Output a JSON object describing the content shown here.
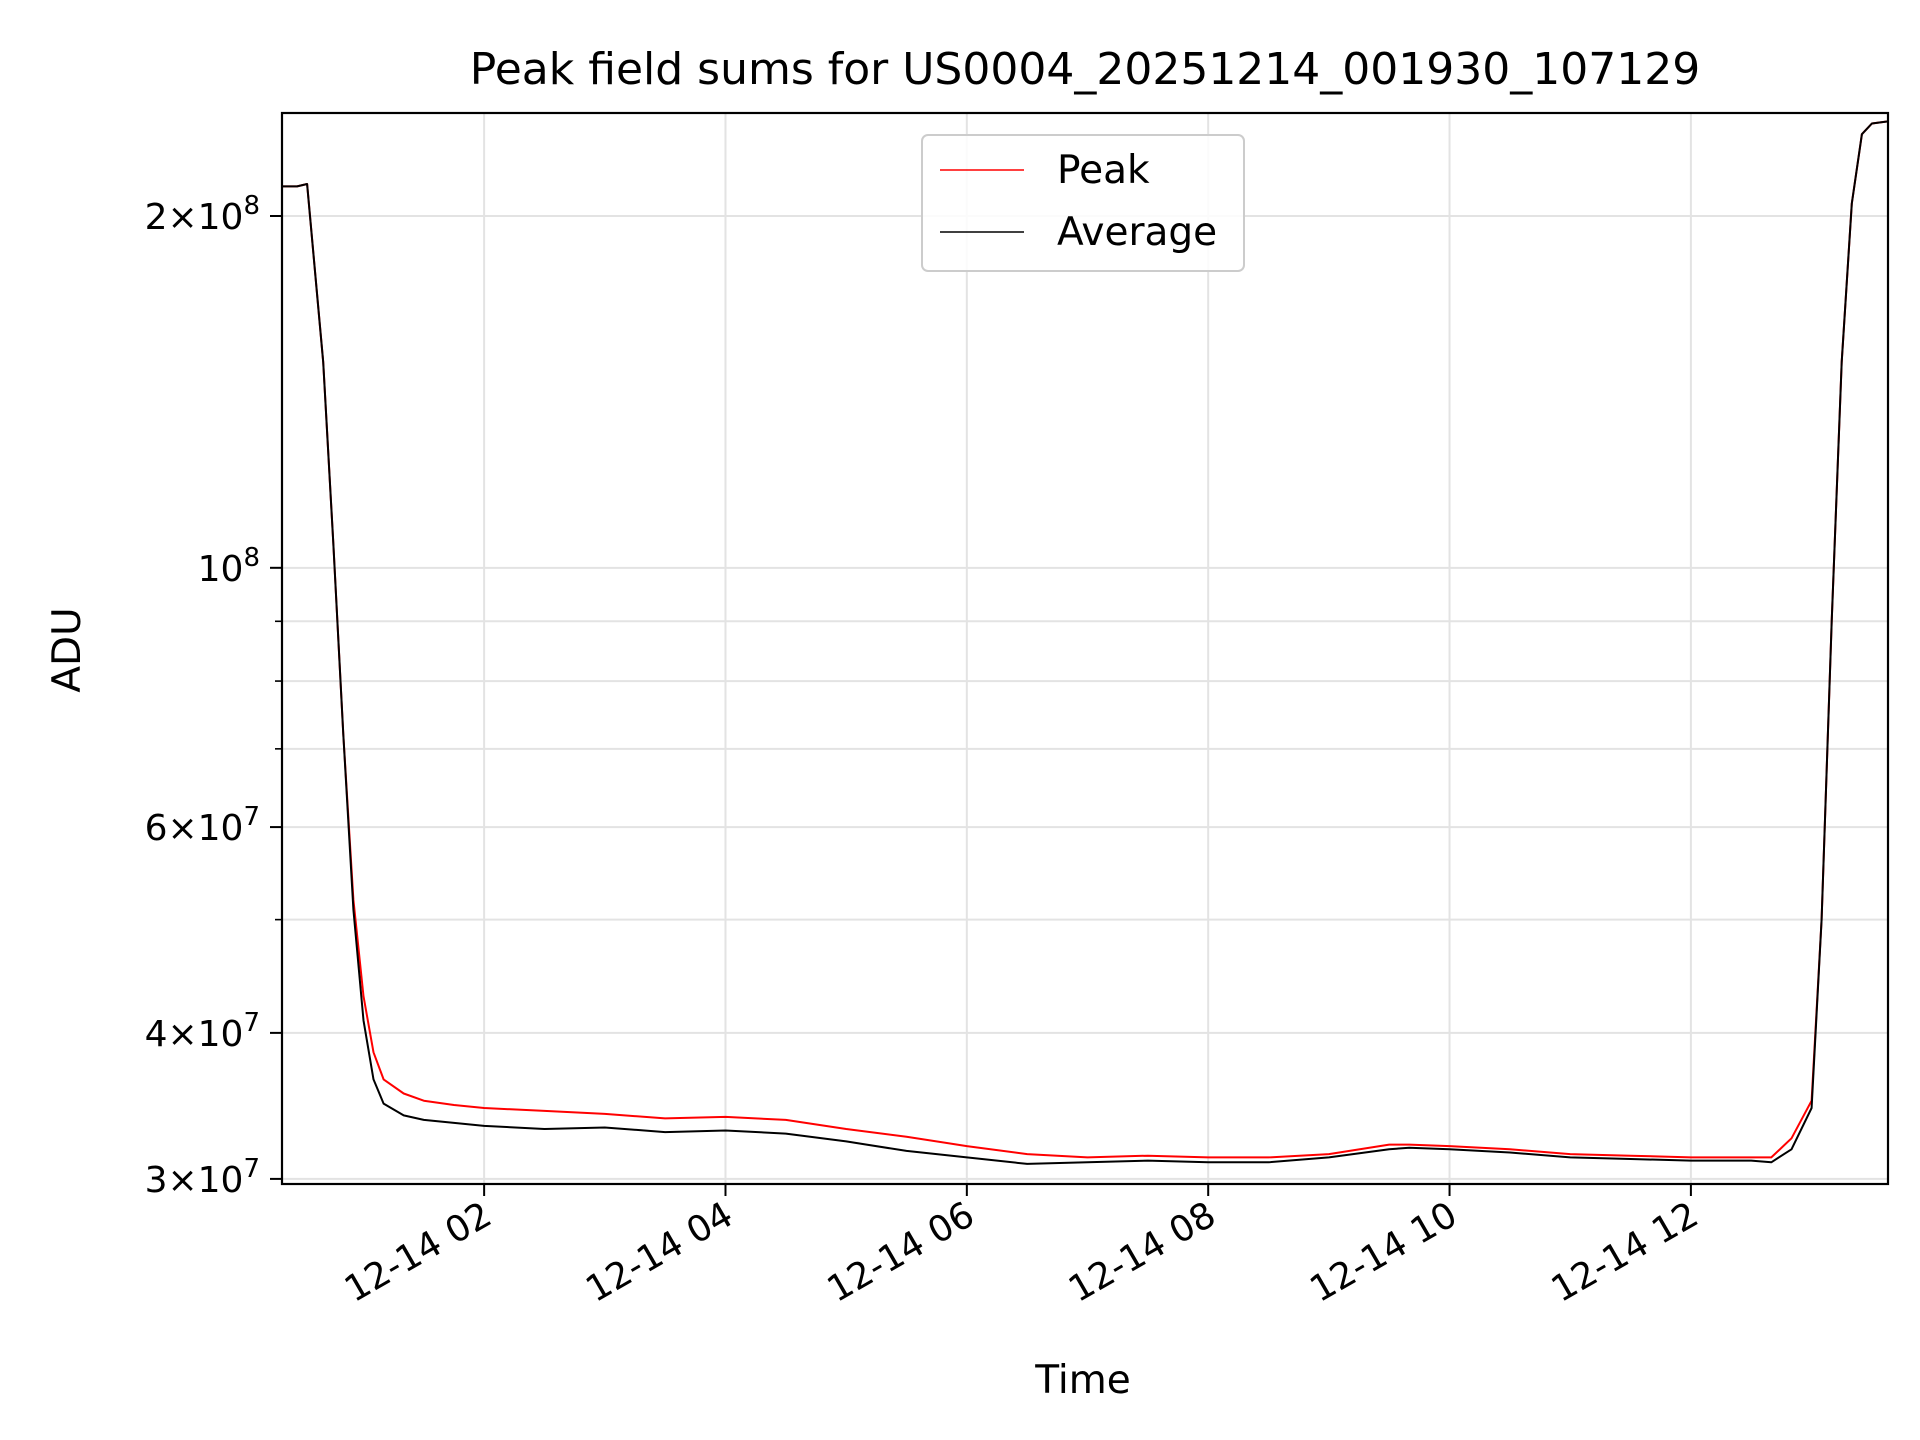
{
  "chart_data": {
    "type": "line",
    "title": "Peak field sums for US0004_20251214_001930_107129",
    "xlabel": "Time",
    "ylabel": "ADU",
    "yscale": "log",
    "grid": true,
    "legend_position": "top-center",
    "xlim": [
      "2025-12-14 00:19:30",
      "2025-12-14 13:38:00"
    ],
    "ylim": [
      29700000,
      245000000
    ],
    "x_ticks": [
      "2025-12-14 02:00",
      "2025-12-14 04:00",
      "2025-12-14 06:00",
      "2025-12-14 08:00",
      "2025-12-14 10:00",
      "2025-12-14 12:00"
    ],
    "x_tick_labels": [
      "12-14 02",
      "12-14 04",
      "12-14 06",
      "12-14 08",
      "12-14 10",
      "12-14 12"
    ],
    "y_ticks": [
      {
        "value": 30000000,
        "mantissa": "3",
        "exponent": "7"
      },
      {
        "value": 40000000,
        "mantissa": "4",
        "exponent": "7"
      },
      {
        "value": 60000000,
        "mantissa": "6",
        "exponent": "7"
      },
      {
        "value": 100000000,
        "mantissa": "",
        "exponent": "8"
      },
      {
        "value": 200000000,
        "mantissa": "2",
        "exponent": "8"
      }
    ],
    "y_minor_ticks": [
      50000000,
      70000000,
      80000000,
      90000000
    ],
    "series": [
      {
        "name": "Peak",
        "color": "#ff0000",
        "x": [
          "2025-12-14 00:20",
          "2025-12-14 00:27",
          "2025-12-14 00:32",
          "2025-12-14 00:40",
          "2025-12-14 00:45",
          "2025-12-14 00:50",
          "2025-12-14 00:55",
          "2025-12-14 01:00",
          "2025-12-14 01:05",
          "2025-12-14 01:10",
          "2025-12-14 01:20",
          "2025-12-14 01:30",
          "2025-12-14 01:45",
          "2025-12-14 02:00",
          "2025-12-14 02:30",
          "2025-12-14 03:00",
          "2025-12-14 03:30",
          "2025-12-14 04:00",
          "2025-12-14 04:30",
          "2025-12-14 05:00",
          "2025-12-14 05:30",
          "2025-12-14 06:00",
          "2025-12-14 06:30",
          "2025-12-14 07:00",
          "2025-12-14 07:30",
          "2025-12-14 08:00",
          "2025-12-14 08:30",
          "2025-12-14 09:00",
          "2025-12-14 09:30",
          "2025-12-14 09:40",
          "2025-12-14 10:00",
          "2025-12-14 10:30",
          "2025-12-14 11:00",
          "2025-12-14 11:30",
          "2025-12-14 12:00",
          "2025-12-14 12:30",
          "2025-12-14 12:40",
          "2025-12-14 12:50",
          "2025-12-14 13:00",
          "2025-12-14 13:05",
          "2025-12-14 13:10",
          "2025-12-14 13:15",
          "2025-12-14 13:20",
          "2025-12-14 13:25",
          "2025-12-14 13:30",
          "2025-12-14 13:38"
        ],
        "values": [
          212000000,
          212000000,
          213000000,
          150000000,
          105000000,
          72000000,
          52000000,
          43000000,
          38500000,
          36500000,
          35500000,
          35000000,
          34700000,
          34500000,
          34300000,
          34100000,
          33800000,
          33900000,
          33700000,
          33100000,
          32600000,
          32000000,
          31500000,
          31300000,
          31400000,
          31300000,
          31300000,
          31500000,
          32100000,
          32100000,
          32000000,
          31800000,
          31500000,
          31400000,
          31300000,
          31300000,
          31300000,
          32500000,
          35000000,
          50000000,
          90000000,
          150000000,
          205000000,
          235000000,
          240000000,
          241000000
        ]
      },
      {
        "name": "Average",
        "color": "#000000",
        "x": [
          "2025-12-14 00:20",
          "2025-12-14 00:27",
          "2025-12-14 00:32",
          "2025-12-14 00:40",
          "2025-12-14 00:45",
          "2025-12-14 00:50",
          "2025-12-14 00:55",
          "2025-12-14 01:00",
          "2025-12-14 01:05",
          "2025-12-14 01:10",
          "2025-12-14 01:20",
          "2025-12-14 01:30",
          "2025-12-14 01:45",
          "2025-12-14 02:00",
          "2025-12-14 02:30",
          "2025-12-14 03:00",
          "2025-12-14 03:30",
          "2025-12-14 04:00",
          "2025-12-14 04:30",
          "2025-12-14 05:00",
          "2025-12-14 05:30",
          "2025-12-14 06:00",
          "2025-12-14 06:30",
          "2025-12-14 07:00",
          "2025-12-14 07:30",
          "2025-12-14 08:00",
          "2025-12-14 08:30",
          "2025-12-14 09:00",
          "2025-12-14 09:30",
          "2025-12-14 09:40",
          "2025-12-14 10:00",
          "2025-12-14 10:30",
          "2025-12-14 11:00",
          "2025-12-14 11:30",
          "2025-12-14 12:00",
          "2025-12-14 12:30",
          "2025-12-14 12:40",
          "2025-12-14 12:50",
          "2025-12-14 13:00",
          "2025-12-14 13:05",
          "2025-12-14 13:10",
          "2025-12-14 13:15",
          "2025-12-14 13:20",
          "2025-12-14 13:25",
          "2025-12-14 13:30",
          "2025-12-14 13:38"
        ],
        "values": [
          212000000,
          212000000,
          213000000,
          150000000,
          105000000,
          72000000,
          51000000,
          41000000,
          36500000,
          34800000,
          34000000,
          33700000,
          33500000,
          33300000,
          33100000,
          33200000,
          32900000,
          33000000,
          32800000,
          32300000,
          31700000,
          31300000,
          30900000,
          31000000,
          31100000,
          31000000,
          31000000,
          31300000,
          31800000,
          31900000,
          31800000,
          31600000,
          31300000,
          31200000,
          31100000,
          31100000,
          31000000,
          31800000,
          34500000,
          50000000,
          90000000,
          150000000,
          205000000,
          235000000,
          240000000,
          241000000
        ]
      }
    ]
  }
}
